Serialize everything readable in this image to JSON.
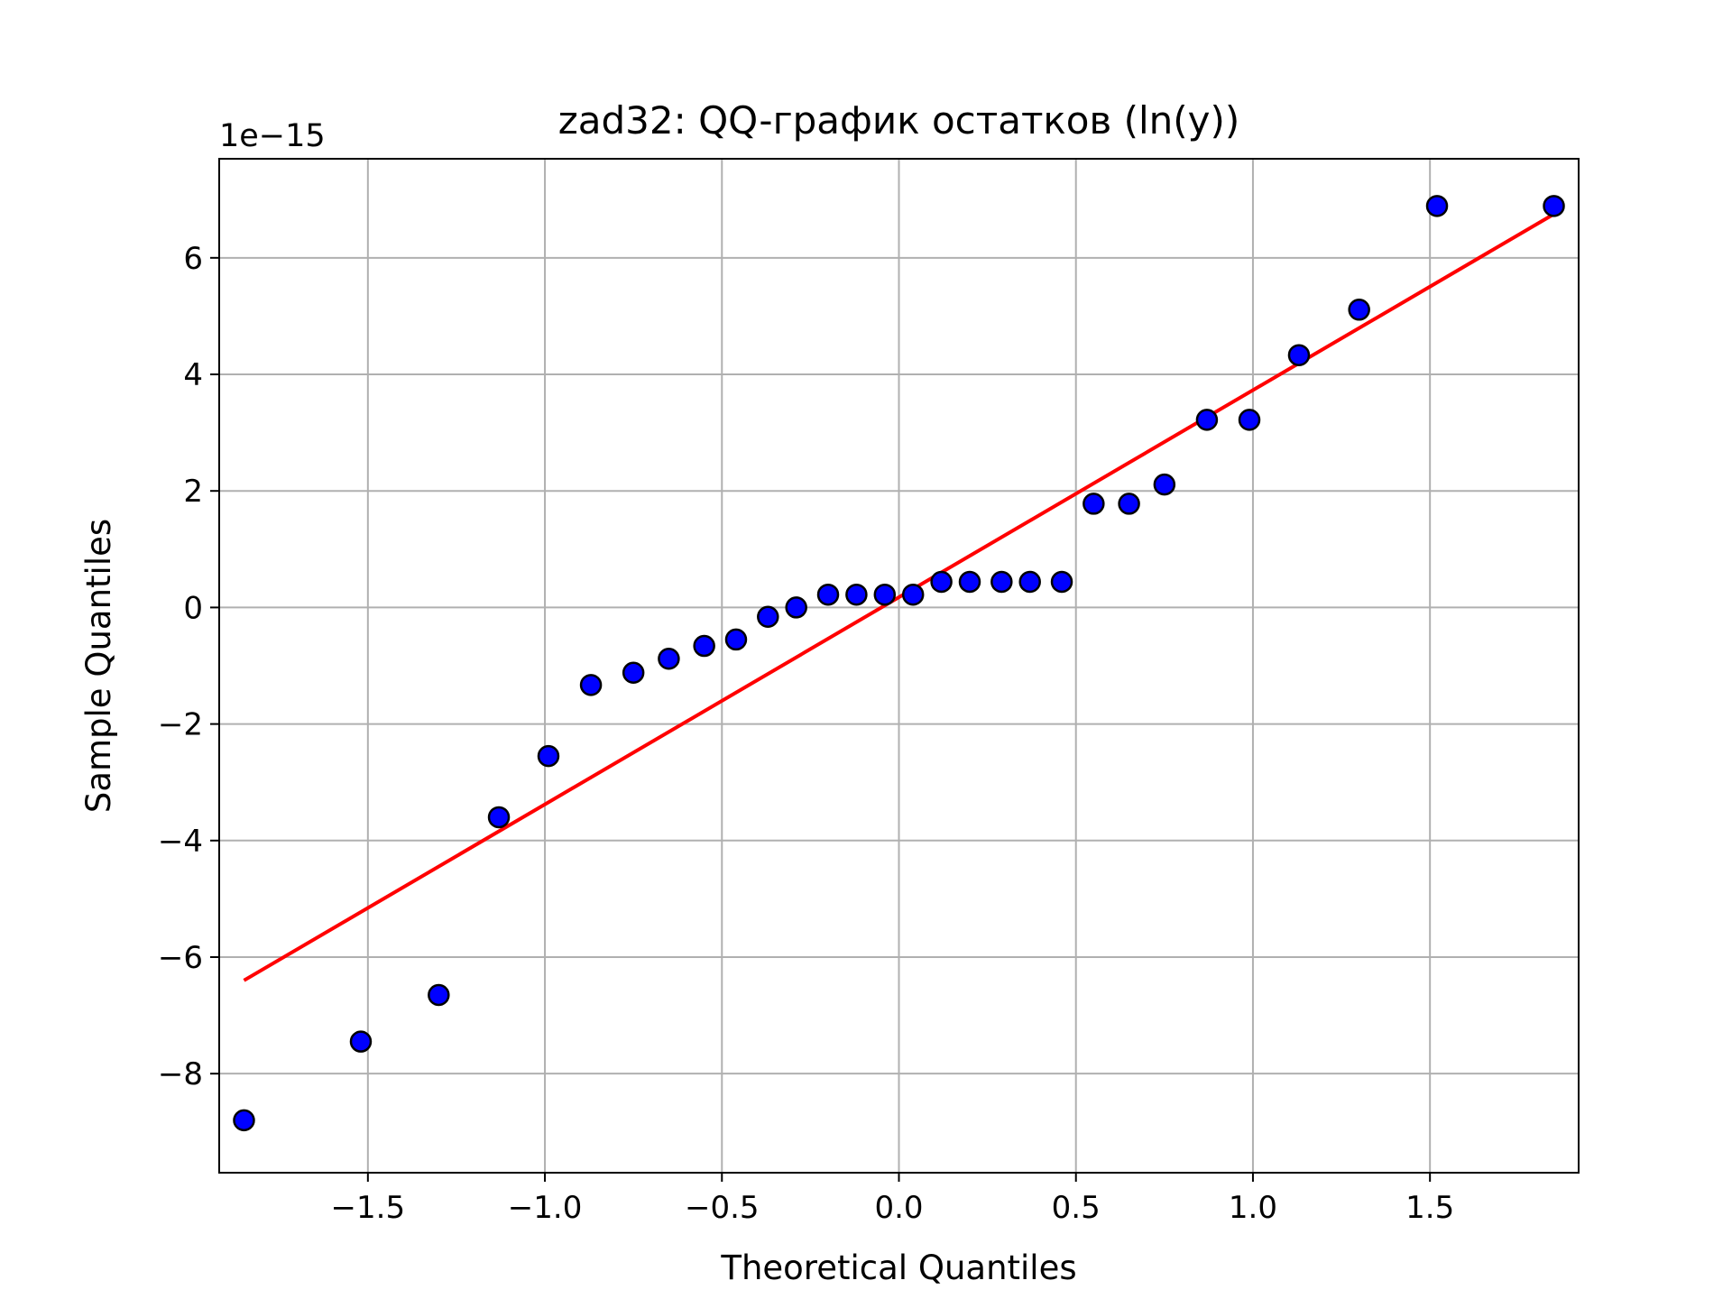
{
  "chart_data": {
    "type": "scatter",
    "title": "zad32: QQ-график остатков (ln(y))",
    "xlabel": "Theoretical Quantiles",
    "ylabel": "Sample Quantiles",
    "y_offset_label": "1e−15",
    "xlim": [
      -1.92,
      1.92
    ],
    "ylim": [
      -9.7,
      7.7
    ],
    "x_ticks": [
      -1.5,
      -1.0,
      -0.5,
      0.0,
      0.5,
      1.0,
      1.5
    ],
    "x_tick_labels": [
      "−1.5",
      "−1.0",
      "−0.5",
      "0.0",
      "0.5",
      "1.0",
      "1.5"
    ],
    "y_ticks": [
      -8,
      -6,
      -4,
      -2,
      0,
      2,
      4,
      6
    ],
    "y_tick_labels": [
      "−8",
      "−6",
      "−4",
      "−2",
      "0",
      "2",
      "4",
      "6"
    ],
    "grid": true,
    "series": [
      {
        "type": "scatter",
        "color": "#0000ff",
        "edgecolor": "#000000",
        "x": [
          -1.85,
          -1.52,
          -1.3,
          -1.13,
          -0.99,
          -0.87,
          -0.75,
          -0.65,
          -0.55,
          -0.46,
          -0.37,
          -0.29,
          -0.2,
          -0.12,
          -0.04,
          0.04,
          0.12,
          0.2,
          0.29,
          0.37,
          0.46,
          0.55,
          0.65,
          0.75,
          0.87,
          0.99,
          1.13,
          1.3,
          1.52,
          1.85
        ],
        "y": [
          -8.8,
          -7.45,
          -6.65,
          -3.6,
          -2.55,
          -1.33,
          -1.12,
          -0.88,
          -0.66,
          -0.55,
          -0.16,
          0.0,
          0.22,
          0.22,
          0.22,
          0.22,
          0.44,
          0.44,
          0.44,
          0.44,
          0.44,
          1.78,
          1.78,
          2.11,
          3.22,
          3.22,
          4.33,
          5.11,
          6.89,
          6.89
        ]
      },
      {
        "type": "line",
        "color": "#ff0000",
        "x": [
          -1.85,
          1.85
        ],
        "y": [
          -6.4,
          6.75
        ]
      }
    ]
  }
}
